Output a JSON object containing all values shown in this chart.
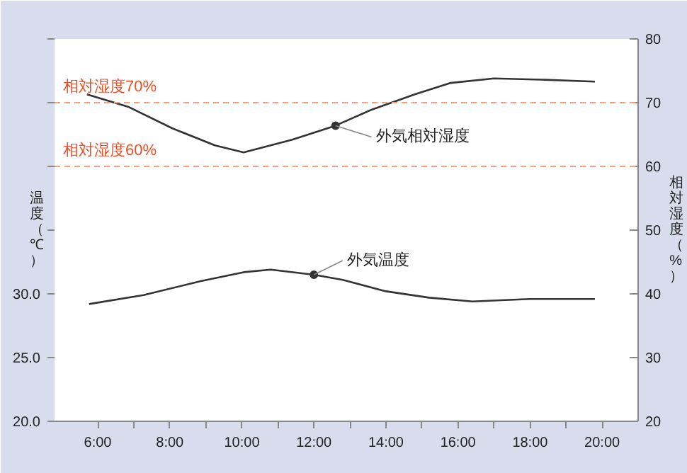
{
  "chart_data": {
    "type": "line",
    "xlim": [
      4.8,
      21
    ],
    "xticks": [
      {
        "value": 6,
        "label": "6:00"
      },
      {
        "value": 7,
        "label": null
      },
      {
        "value": 8,
        "label": "8:00"
      },
      {
        "value": 9,
        "label": null
      },
      {
        "value": 10,
        "label": "10:00"
      },
      {
        "value": 11,
        "label": null
      },
      {
        "value": 12,
        "label": "12:00"
      },
      {
        "value": 13,
        "label": null
      },
      {
        "value": 14,
        "label": "14:00"
      },
      {
        "value": 15,
        "label": null
      },
      {
        "value": 16,
        "label": "16:00"
      },
      {
        "value": 17,
        "label": null
      },
      {
        "value": 18,
        "label": "18:00"
      },
      {
        "value": 19,
        "label": null
      },
      {
        "value": 20,
        "label": "20:00"
      }
    ],
    "ylim": [
      20,
      50
    ],
    "yticks": [
      {
        "value": 20,
        "label": "20.0"
      },
      {
        "value": 25,
        "label": "25.0"
      },
      {
        "value": 30,
        "label": "30.0"
      },
      {
        "value": 35,
        "label": null
      },
      {
        "value": 40,
        "label": null
      },
      {
        "value": 45,
        "label": null
      },
      {
        "value": 50,
        "label": null
      }
    ],
    "y2lim": [
      20,
      80
    ],
    "y2ticks": [
      20,
      30,
      40,
      50,
      60,
      70,
      80
    ],
    "ylabel": "温度（℃）",
    "y2label": "相対湿度（%）",
    "grid": false,
    "line_style": "solid",
    "ref_lines": [
      {
        "axis": "y2",
        "value": 70,
        "label": "相対湿度70%",
        "color": "#f4a07a",
        "line_style": "dashed"
      },
      {
        "axis": "y2",
        "value": 60,
        "label": "相対湿度60%",
        "color": "#f4a07a",
        "line_style": "dashed"
      }
    ],
    "series": [
      {
        "name": "外気温度",
        "color": "#333333",
        "x": [
          5.76,
          7.27,
          8.86,
          10.05,
          10.8,
          12.0,
          12.8,
          14.0,
          15.2,
          16.4,
          18.0,
          19.8
        ],
        "values": [
          29.2,
          29.9,
          31.0,
          31.7,
          31.9,
          31.5,
          31.1,
          30.2,
          29.7,
          29.4,
          29.6,
          29.6
        ]
      },
      {
        "name": "外気相対湿度",
        "color": "#333333",
        "axis": "y2",
        "x": [
          5.7,
          6.87,
          8.06,
          9.25,
          10.05,
          11.4,
          12.6,
          13.6,
          14.8,
          15.8,
          17.0,
          18.4,
          19.8
        ],
        "values": [
          71.3,
          69.3,
          66.0,
          63.3,
          62.2,
          64.2,
          66.4,
          68.9,
          71.3,
          73.1,
          73.8,
          73.6,
          73.3
        ]
      }
    ]
  }
}
